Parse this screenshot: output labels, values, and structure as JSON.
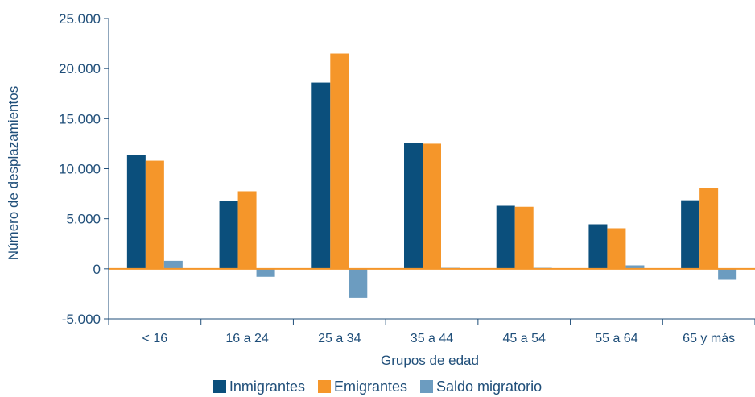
{
  "chart_data": {
    "type": "bar",
    "title": "",
    "xlabel": "Grupos de edad",
    "ylabel": "Número de desplazamientos",
    "categories": [
      "< 16",
      "16 a 24",
      "25 a 34",
      "35 a 44",
      "45 a 54",
      "55 a 64",
      "65 y más"
    ],
    "ylim": [
      -5000,
      25000
    ],
    "yticks": [
      -5000,
      0,
      5000,
      10000,
      15000,
      20000,
      25000
    ],
    "ytick_labels": [
      "-5.000",
      "0",
      "5.000",
      "10.000",
      "15.000",
      "20.000",
      "25.000"
    ],
    "legend_position": "bottom",
    "grid": false,
    "series": [
      {
        "name": "Inmigrantes",
        "color": "#0b4f7c",
        "values": [
          11400,
          6800,
          18600,
          12600,
          6300,
          4450,
          6850
        ]
      },
      {
        "name": "Emigrantes",
        "color": "#f5962a",
        "values": [
          10800,
          7750,
          21500,
          12500,
          6200,
          4050,
          8050
        ]
      },
      {
        "name": "Saldo migratorio",
        "color": "#6c9cc0",
        "values": [
          800,
          -800,
          -2900,
          100,
          100,
          350,
          -1100
        ]
      }
    ]
  },
  "colors": {
    "axis": "#1f4e79",
    "zero_line": "#f5962a",
    "text": "#1f4e79"
  }
}
